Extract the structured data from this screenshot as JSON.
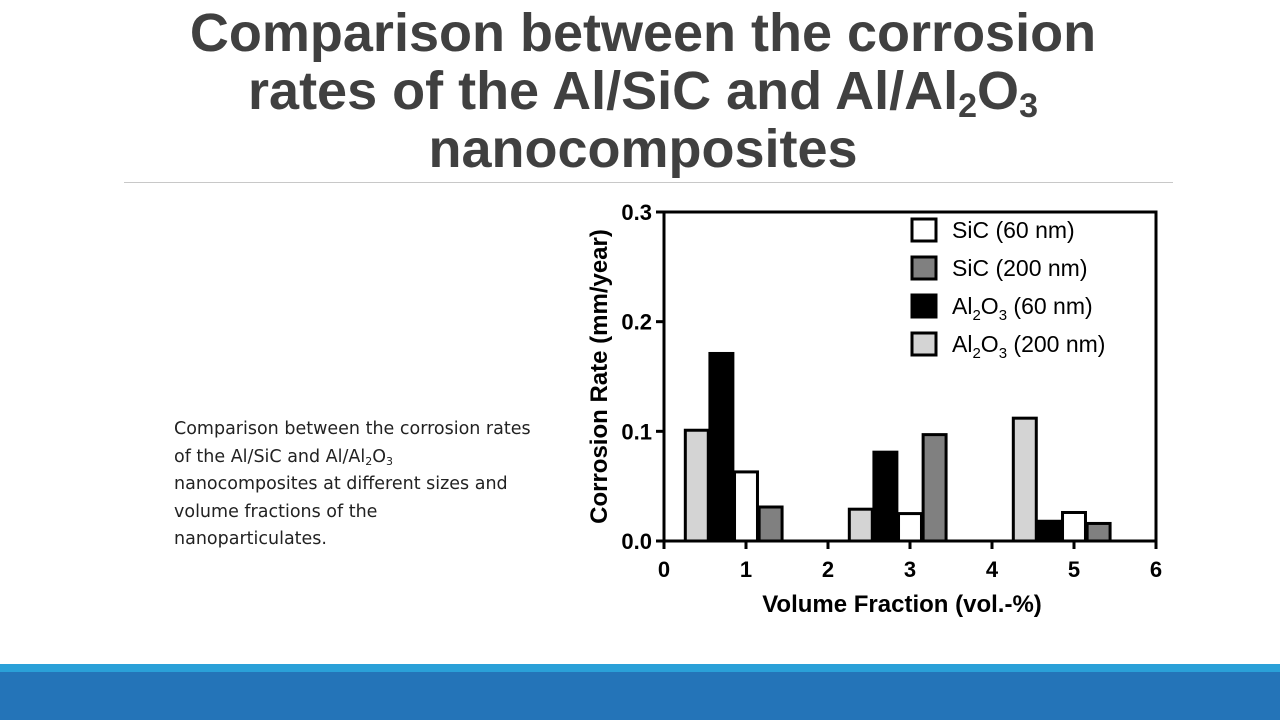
{
  "slide": {
    "title_line1": "Comparison between the corrosion",
    "title_line2_pre": "rates of the Al/SiC and Al/Al",
    "title_line2_sub1": "2",
    "title_line2_mid": "O",
    "title_line2_sub2": "3",
    "title_line3": "nanocomposites",
    "caption_part1": "Comparison between the corrosion rates of the Al/SiC and Al/Al",
    "caption_sub1": "2",
    "caption_mid": "O",
    "caption_sub2": "3",
    "caption_part2": "nanocomposites at different sizes and volume fractions of the nanoparticulates.",
    "footer_colors": [
      "#2aa0d8",
      "#2474b8"
    ]
  },
  "chart_data": {
    "type": "bar",
    "xlabel": "Volume Fraction (vol.-%)",
    "ylabel": "Corrosion Rate (mm/year)",
    "xlim": [
      0,
      6
    ],
    "ylim": [
      0,
      0.3
    ],
    "xticks": [
      "0",
      "1",
      "2",
      "3",
      "4",
      "5",
      "6"
    ],
    "yticks": [
      "0.0",
      "0.1",
      "0.2",
      "0.3"
    ],
    "grid": false,
    "legend_position": "top-right",
    "bar_width": 0.28,
    "series": [
      {
        "name": "SiC (60 nm)",
        "legend_parts": [
          "SiC (60 nm)"
        ],
        "color": "#ffffff",
        "points": [
          {
            "x": 1.0,
            "y": 0.063
          },
          {
            "x": 3.0,
            "y": 0.025
          },
          {
            "x": 5.0,
            "y": 0.026
          }
        ]
      },
      {
        "name": "SiC (200 nm)",
        "legend_parts": [
          "SiC (200 nm)"
        ],
        "color": "#808080",
        "points": [
          {
            "x": 1.3,
            "y": 0.031
          },
          {
            "x": 3.3,
            "y": 0.097
          },
          {
            "x": 5.3,
            "y": 0.016
          }
        ]
      },
      {
        "name": "Al2O3 (60 nm)",
        "legend_parts": [
          "Al",
          "2",
          "O",
          "3",
          " (60 nm)"
        ],
        "color": "#000000",
        "points": [
          {
            "x": 0.7,
            "y": 0.171
          },
          {
            "x": 2.7,
            "y": 0.081
          },
          {
            "x": 4.7,
            "y": 0.018
          }
        ]
      },
      {
        "name": "Al2O3 (200 nm)",
        "legend_parts": [
          "Al",
          "2",
          "O",
          "3",
          " (200 nm)"
        ],
        "color": "#d4d4d4",
        "points": [
          {
            "x": 0.4,
            "y": 0.101
          },
          {
            "x": 2.4,
            "y": 0.029
          },
          {
            "x": 4.4,
            "y": 0.112
          }
        ]
      }
    ]
  }
}
